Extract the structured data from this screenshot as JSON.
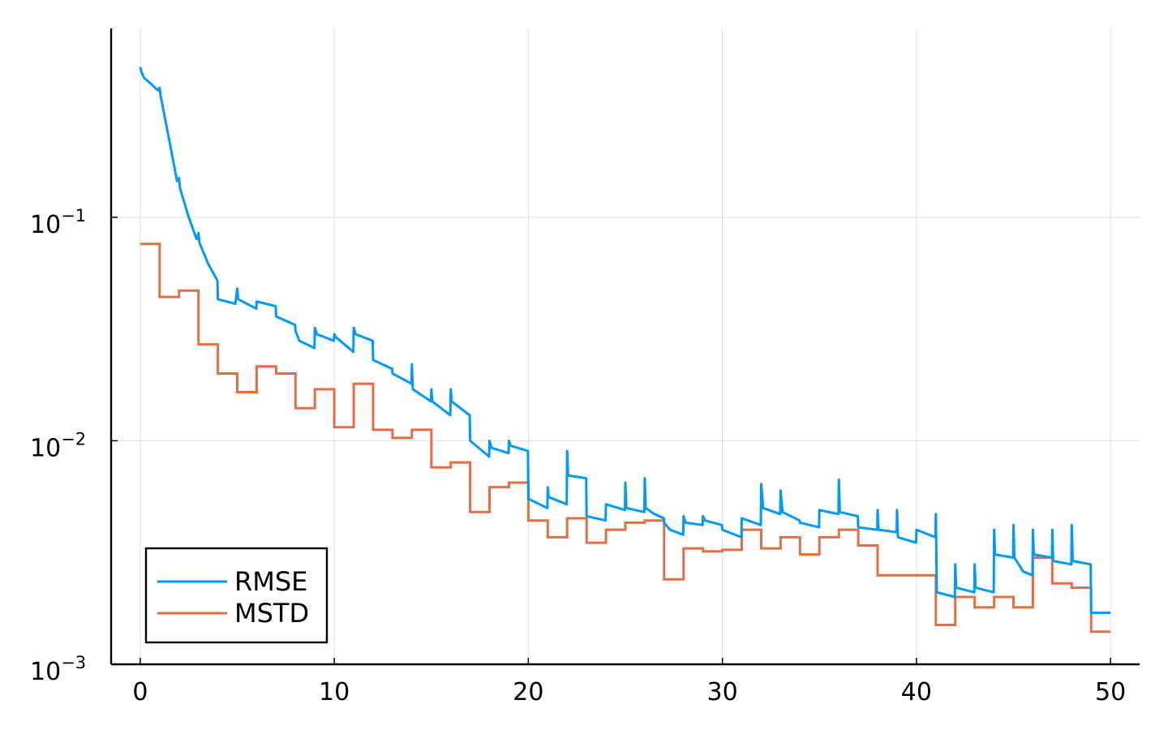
{
  "chart_data": {
    "type": "line",
    "title": "",
    "xlabel": "",
    "ylabel": "",
    "xlim": [
      -1.5,
      51.5
    ],
    "ylim": [
      0.001,
      0.7
    ],
    "yscale": "log",
    "grid": true,
    "legend_position": "bottom-left",
    "x_ticks": [
      0,
      10,
      20,
      30,
      40,
      50
    ],
    "x_tick_labels": [
      "0",
      "10",
      "20",
      "30",
      "40",
      "50"
    ],
    "y_ticks": [
      0.001,
      0.01,
      0.1
    ],
    "y_tick_labels": [
      {
        "base": "10",
        "exp": "−3"
      },
      {
        "base": "10",
        "exp": "−2"
      },
      {
        "base": "10",
        "exp": "−1"
      }
    ],
    "series": [
      {
        "name": "RMSE",
        "color": "#009AFA",
        "points": [
          [
            0,
            0.47
          ],
          [
            0.05,
            0.45
          ],
          [
            0.2,
            0.42
          ],
          [
            0.5,
            0.4
          ],
          [
            0.9,
            0.37
          ],
          [
            1.0,
            0.38
          ],
          [
            1.05,
            0.35
          ],
          [
            1.5,
            0.22
          ],
          [
            1.9,
            0.145
          ],
          [
            2.0,
            0.15
          ],
          [
            2.05,
            0.135
          ],
          [
            2.5,
            0.1
          ],
          [
            2.9,
            0.08
          ],
          [
            3.0,
            0.085
          ],
          [
            3.05,
            0.077
          ],
          [
            3.5,
            0.062
          ],
          [
            3.98,
            0.052
          ],
          [
            4.0,
            0.043
          ],
          [
            4.9,
            0.041
          ],
          [
            5.0,
            0.048
          ],
          [
            5.05,
            0.043
          ],
          [
            5.5,
            0.041
          ],
          [
            5.98,
            0.039
          ],
          [
            6.0,
            0.042
          ],
          [
            6.98,
            0.04
          ],
          [
            7.0,
            0.036
          ],
          [
            7.98,
            0.033
          ],
          [
            8.0,
            0.031
          ],
          [
            8.2,
            0.028
          ],
          [
            8.98,
            0.026
          ],
          [
            9.0,
            0.032
          ],
          [
            9.1,
            0.03
          ],
          [
            9.98,
            0.028
          ],
          [
            10.0,
            0.03
          ],
          [
            10.1,
            0.029
          ],
          [
            10.98,
            0.025
          ],
          [
            11.0,
            0.032
          ],
          [
            11.1,
            0.03
          ],
          [
            11.98,
            0.028
          ],
          [
            12.0,
            0.023
          ],
          [
            12.98,
            0.021
          ],
          [
            13.0,
            0.02
          ],
          [
            13.98,
            0.018
          ],
          [
            14.0,
            0.022
          ],
          [
            14.05,
            0.017
          ],
          [
            14.98,
            0.015
          ],
          [
            15.0,
            0.017
          ],
          [
            15.05,
            0.015
          ],
          [
            15.98,
            0.013
          ],
          [
            16.0,
            0.017
          ],
          [
            16.05,
            0.015
          ],
          [
            16.98,
            0.013
          ],
          [
            17.0,
            0.01
          ],
          [
            17.98,
            0.0085
          ],
          [
            18.0,
            0.01
          ],
          [
            18.1,
            0.0093
          ],
          [
            18.98,
            0.0088
          ],
          [
            19.0,
            0.01
          ],
          [
            19.1,
            0.0095
          ],
          [
            19.98,
            0.009
          ],
          [
            20.0,
            0.0055
          ],
          [
            20.98,
            0.005
          ],
          [
            21.0,
            0.0062
          ],
          [
            21.05,
            0.0056
          ],
          [
            21.98,
            0.0052
          ],
          [
            22.0,
            0.009
          ],
          [
            22.05,
            0.007
          ],
          [
            22.98,
            0.0068
          ],
          [
            23.0,
            0.0046
          ],
          [
            23.98,
            0.0044
          ],
          [
            24.0,
            0.0052
          ],
          [
            24.98,
            0.0049
          ],
          [
            25.0,
            0.0065
          ],
          [
            25.05,
            0.005
          ],
          [
            25.98,
            0.0048
          ],
          [
            26.0,
            0.0068
          ],
          [
            26.05,
            0.005
          ],
          [
            26.5,
            0.0047
          ],
          [
            26.98,
            0.0045
          ],
          [
            27.0,
            0.0043
          ],
          [
            27.3,
            0.004
          ],
          [
            27.98,
            0.0038
          ],
          [
            28.0,
            0.0046
          ],
          [
            28.1,
            0.0043
          ],
          [
            28.98,
            0.0042
          ],
          [
            29.0,
            0.0046
          ],
          [
            29.1,
            0.0044
          ],
          [
            29.98,
            0.0042
          ],
          [
            30.0,
            0.004
          ],
          [
            30.98,
            0.0037
          ],
          [
            31.0,
            0.0045
          ],
          [
            31.98,
            0.0042
          ],
          [
            32.0,
            0.0064
          ],
          [
            32.1,
            0.005
          ],
          [
            32.98,
            0.0047
          ],
          [
            33.0,
            0.006
          ],
          [
            33.1,
            0.0048
          ],
          [
            33.98,
            0.0044
          ],
          [
            34.0,
            0.0043
          ],
          [
            34.98,
            0.0041
          ],
          [
            35.0,
            0.0049
          ],
          [
            35.98,
            0.0047
          ],
          [
            36.0,
            0.0067
          ],
          [
            36.05,
            0.0048
          ],
          [
            36.98,
            0.0046
          ],
          [
            37.0,
            0.0041
          ],
          [
            37.98,
            0.004
          ],
          [
            38.0,
            0.0049
          ],
          [
            38.05,
            0.004
          ],
          [
            38.98,
            0.0039
          ],
          [
            39.0,
            0.0049
          ],
          [
            39.05,
            0.0037
          ],
          [
            39.98,
            0.0035
          ],
          [
            40.0,
            0.004
          ],
          [
            40.98,
            0.0037
          ],
          [
            41.0,
            0.0047
          ],
          [
            41.05,
            0.0021
          ],
          [
            41.98,
            0.002
          ],
          [
            42.0,
            0.0028
          ],
          [
            42.05,
            0.0022
          ],
          [
            42.98,
            0.0021
          ],
          [
            43.0,
            0.0028
          ],
          [
            43.05,
            0.0022
          ],
          [
            43.98,
            0.0021
          ],
          [
            44.0,
            0.004
          ],
          [
            44.05,
            0.0031
          ],
          [
            44.98,
            0.003
          ],
          [
            45.0,
            0.0042
          ],
          [
            45.05,
            0.003
          ],
          [
            45.5,
            0.0026
          ],
          [
            45.98,
            0.0025
          ],
          [
            46.0,
            0.004
          ],
          [
            46.05,
            0.0031
          ],
          [
            46.98,
            0.003
          ],
          [
            47.0,
            0.004
          ],
          [
            47.05,
            0.0029
          ],
          [
            47.98,
            0.0028
          ],
          [
            48.0,
            0.0042
          ],
          [
            48.05,
            0.0029
          ],
          [
            48.98,
            0.0028
          ],
          [
            49.0,
            0.0017
          ],
          [
            50.0,
            0.0017
          ]
        ]
      },
      {
        "name": "MSTD",
        "color": "#E26F46",
        "steps": {
          "x": [
            0,
            1,
            2,
            3,
            4,
            5,
            6,
            7,
            8,
            9,
            10,
            11,
            12,
            13,
            14,
            15,
            16,
            17,
            18,
            19,
            20,
            21,
            22,
            23,
            24,
            25,
            26,
            27,
            28,
            29,
            30,
            31,
            32,
            33,
            34,
            35,
            36,
            37,
            38,
            39,
            40,
            41,
            42,
            43,
            44,
            45,
            46,
            47,
            48,
            49
          ],
          "y": [
            0.076,
            0.044,
            0.047,
            0.027,
            0.02,
            0.0165,
            0.0215,
            0.02,
            0.014,
            0.017,
            0.0115,
            0.018,
            0.0112,
            0.0103,
            0.0112,
            0.0076,
            0.008,
            0.0048,
            0.0062,
            0.0065,
            0.0044,
            0.0037,
            0.0045,
            0.0035,
            0.004,
            0.0043,
            0.0044,
            0.0024,
            0.0033,
            0.0032,
            0.00325,
            0.004,
            0.0033,
            0.0037,
            0.0031,
            0.0037,
            0.004,
            0.0034,
            0.0025,
            0.0025,
            0.0025,
            0.0015,
            0.002,
            0.0018,
            0.002,
            0.0018,
            0.003,
            0.0023,
            0.0022,
            0.0014
          ],
          "end_x": 50
        }
      }
    ]
  }
}
